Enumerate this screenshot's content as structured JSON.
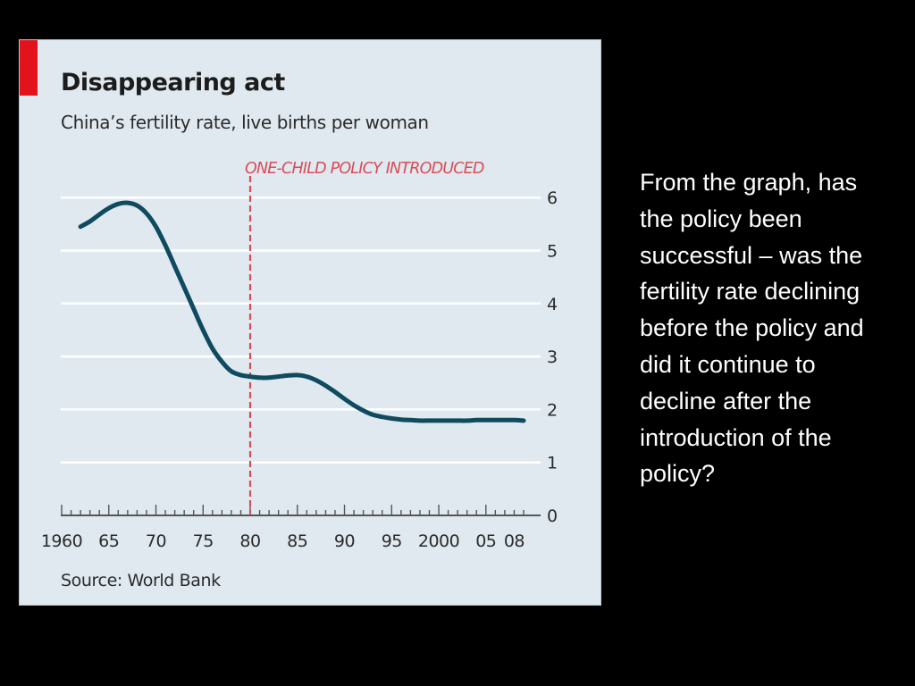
{
  "colors": {
    "background": "#000000",
    "panel": "#dfe9ef",
    "accent": "#e2131b",
    "line": "#0f4a5f",
    "annotation": "#d94b57",
    "gridline": "#ffffff",
    "text": "#1c1c1c"
  },
  "chart_data": {
    "type": "line",
    "title": "Disappearing act",
    "subtitle": "China’s fertility rate, live births per woman",
    "source": "Source: World Bank",
    "xlabel": "",
    "ylabel": "",
    "xlim": [
      1960,
      2009
    ],
    "ylim": [
      0,
      6
    ],
    "yticks": [
      0,
      1,
      2,
      3,
      4,
      5,
      6
    ],
    "y_tick_labels": [
      "0",
      "1",
      "2",
      "3",
      "4",
      "5",
      "6"
    ],
    "xticks": [
      1960,
      1965,
      1970,
      1975,
      1980,
      1985,
      1990,
      1995,
      2000,
      2005,
      2008
    ],
    "x_tick_labels": [
      "1960",
      "65",
      "70",
      "75",
      "80",
      "85",
      "90",
      "95",
      "2000",
      "05",
      "08"
    ],
    "grid": true,
    "y_axis_side": "right",
    "series": [
      {
        "x": [
          1962,
          1963,
          1964,
          1965,
          1966,
          1967,
          1968,
          1969,
          1970,
          1971,
          1972,
          1973,
          1974,
          1975,
          1976,
          1977,
          1978,
          1979,
          1980,
          1981,
          1982,
          1983,
          1984,
          1985,
          1986,
          1987,
          1988,
          1989,
          1990,
          1991,
          1992,
          1993,
          1994,
          1995,
          1996,
          1997,
          1998,
          1999,
          2000,
          2001,
          2002,
          2003,
          2004,
          2005,
          2006,
          2007,
          2008,
          2009
        ],
        "y": [
          5.45,
          5.55,
          5.68,
          5.8,
          5.88,
          5.9,
          5.85,
          5.7,
          5.45,
          5.1,
          4.7,
          4.3,
          3.9,
          3.5,
          3.15,
          2.9,
          2.72,
          2.65,
          2.62,
          2.6,
          2.6,
          2.62,
          2.64,
          2.65,
          2.62,
          2.55,
          2.45,
          2.33,
          2.2,
          2.08,
          1.98,
          1.9,
          1.86,
          1.83,
          1.81,
          1.8,
          1.79,
          1.79,
          1.79,
          1.79,
          1.79,
          1.79,
          1.8,
          1.8,
          1.8,
          1.8,
          1.8,
          1.79
        ]
      }
    ],
    "annotations": [
      {
        "text": "ONE-CHILD POLICY INTRODUCED",
        "x": 1980,
        "style": "dashed-vertical-line"
      }
    ]
  },
  "question": "From the graph, has the policy been successful – was the fertility rate declining before the policy and did it continue to decline after the introduction of the policy?"
}
